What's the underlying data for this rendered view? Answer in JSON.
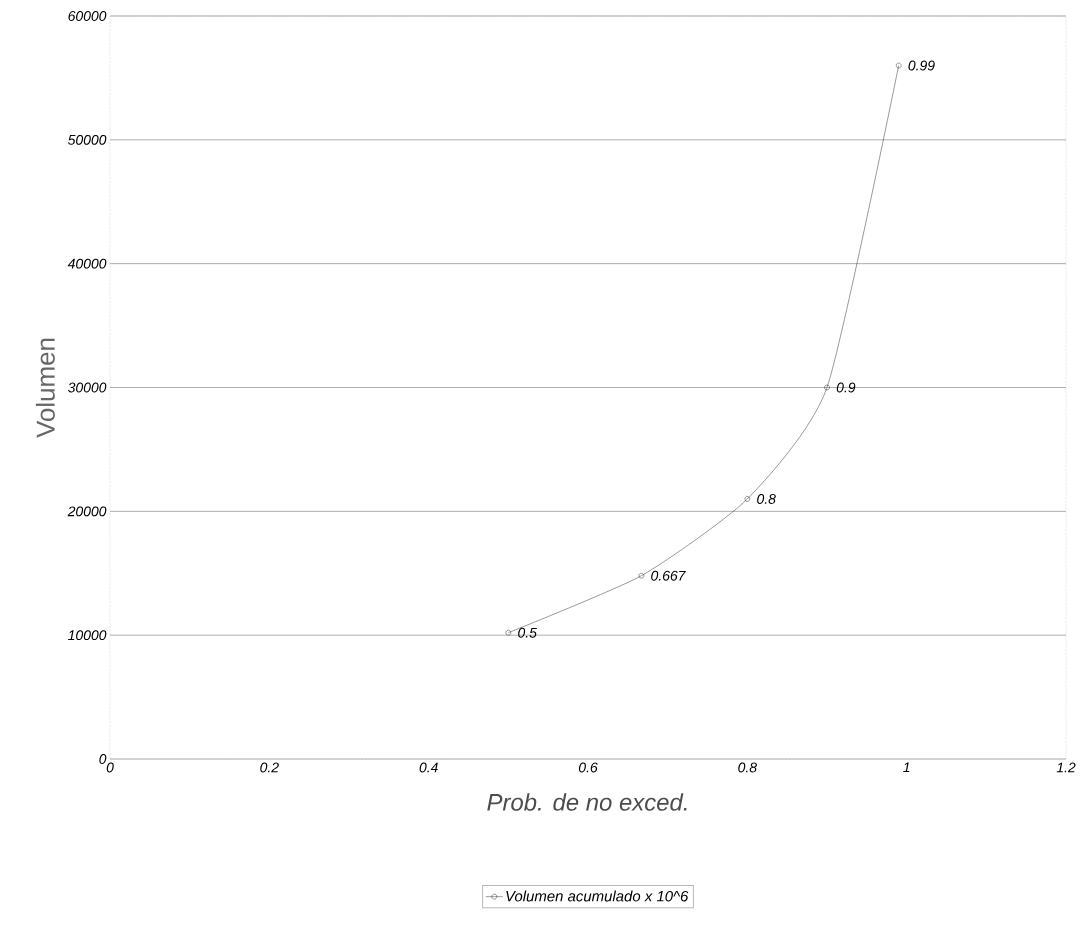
{
  "chart_data": {
    "type": "line",
    "xlabel": "Prob. de no exced.",
    "ylabel": "Volumen",
    "x": [
      0.5,
      0.667,
      0.8,
      0.9,
      0.99
    ],
    "series": [
      {
        "name": "Volumen acumulado x 10^6",
        "color": "#000000",
        "values": [
          10200,
          14800,
          21000,
          30000,
          56000
        ]
      }
    ],
    "xlim": [
      0,
      1.2
    ],
    "xticks": [
      0,
      0.2,
      0.4,
      0.6,
      0.8,
      1,
      1.2
    ],
    "ylim": [
      0,
      60000
    ],
    "yticks": [
      0,
      10000,
      20000,
      30000,
      40000,
      50000,
      60000
    ],
    "grid": "y",
    "legend": "bottom",
    "marker": "circle",
    "line_style": "solid",
    "annotations": [
      {
        "text": "0.5",
        "x": 0.5,
        "y": 10200
      },
      {
        "text": "0.667",
        "x": 0.667,
        "y": 14800
      },
      {
        "text": "0.8",
        "x": 0.8,
        "y": 21000
      },
      {
        "text": "0.9",
        "x": 0.9,
        "y": 30000
      },
      {
        "text": "0.99",
        "x": 0.99,
        "y": 56000
      }
    ]
  }
}
